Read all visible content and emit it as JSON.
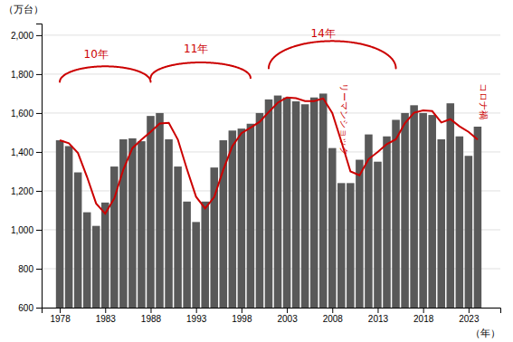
{
  "chart_data": {
    "type": "bar",
    "x_label": "（年）",
    "y_label": "（万台）",
    "x": [
      1978,
      1979,
      1980,
      1981,
      1982,
      1983,
      1984,
      1985,
      1986,
      1987,
      1988,
      1989,
      1990,
      1991,
      1992,
      1993,
      1994,
      1995,
      1996,
      1997,
      1998,
      1999,
      2000,
      2001,
      2002,
      2003,
      2004,
      2005,
      2006,
      2007,
      2008,
      2009,
      2010,
      2011,
      2012,
      2013,
      2014,
      2015,
      2016,
      2017,
      2018,
      2019,
      2020,
      2021,
      2022,
      2023,
      2024
    ],
    "series": [
      {
        "type": "bar",
        "color": "#595959",
        "values": [
          1460,
          1430,
          1295,
          1090,
          1020,
          1140,
          1325,
          1465,
          1470,
          1455,
          1585,
          1600,
          1465,
          1325,
          1145,
          1040,
          1145,
          1320,
          1460,
          1510,
          1520,
          1545,
          1600,
          1670,
          1690,
          1680,
          1660,
          1645,
          1680,
          1700,
          1420,
          1240,
          1240,
          1360,
          1490,
          1350,
          1480,
          1565,
          1600,
          1640,
          1600,
          1590,
          1465,
          1650,
          1480,
          1380,
          1530
        ]
      },
      {
        "type": "line",
        "color": "#cc0000",
        "values": [
          1460,
          1445,
          1395,
          1271.6666666666667,
          1135,
          1083.3333333333333,
          1161.6666666666667,
          1310,
          1420,
          1463.3333333333333,
          1503.3333333333333,
          1546.6666666666667,
          1550,
          1463.3333333333333,
          1311.6666666666667,
          1170,
          1110,
          1168.3333333333333,
          1308.3333333333333,
          1430,
          1496.6666666666667,
          1525,
          1555,
          1605,
          1653.3333333333333,
          1680,
          1676.6666666666667,
          1661.6666666666667,
          1661.6666666666667,
          1675,
          1600,
          1453.3333333333333,
          1300,
          1280,
          1363.3333333333333,
          1400,
          1440,
          1465,
          1548.3333333333333,
          1601.6666666666667,
          1613.3333333333333,
          1610,
          1551.6666666666667,
          1568.3333333333333,
          1531.6666666666667,
          1503.3333333333333,
          1463.3333333333333
        ]
      }
    ],
    "xlim": [
      1976.0,
      2026.5
    ],
    "xticks": [
      1978,
      1983,
      1988,
      1993,
      1998,
      2003,
      2008,
      2013,
      2018,
      2023
    ],
    "ylim": [
      600,
      2060
    ],
    "yticks": [
      600,
      800,
      {
        "value": 1000,
        "label": "1,000"
      },
      {
        "value": 1200,
        "label": "1,200"
      },
      {
        "value": 1400,
        "label": "1,400"
      },
      {
        "value": 1600,
        "label": "1,600"
      },
      {
        "value": 1800,
        "label": "1,800"
      },
      {
        "value": 2000,
        "label": "2,000"
      }
    ],
    "grid": true,
    "annotations": [
      {
        "text": "10年",
        "x": 1982,
        "y": 1900,
        "color": "#cc0000",
        "arc": {
          "x_start": 1978,
          "x_end": 1988,
          "y_base": 1760,
          "peak_y": 1840
        }
      },
      {
        "text": "11年",
        "x": 1993,
        "y": 1930,
        "color": "#cc0000",
        "arc": {
          "x_start": 1988,
          "x_end": 1999,
          "y_base": 1780,
          "peak_y": 1860
        }
      },
      {
        "text": "14年",
        "x": 2007,
        "y": 2010,
        "color": "#cc0000",
        "arc": {
          "x_start": 2001,
          "x_end": 2015,
          "y_base": 1830,
          "peak_y": 1970
        }
      },
      {
        "text": "リーマンショック",
        "x": 2009.3,
        "y": 1755,
        "color": "#cc0000"
      },
      {
        "text": "コロナ禍",
        "x": 2024.7,
        "y": 1755,
        "color": "#cc0000"
      }
    ]
  }
}
